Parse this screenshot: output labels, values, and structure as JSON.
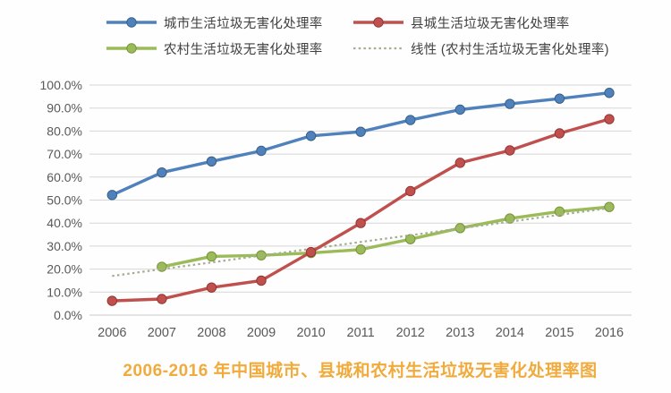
{
  "chart_data": {
    "type": "line",
    "title": "2006-2016 年中国城市、县城和农村生活垃圾无害化处理率图",
    "title_color": "#F0AB3C",
    "x": [
      "2006",
      "2007",
      "2008",
      "2009",
      "2010",
      "2011",
      "2012",
      "2013",
      "2014",
      "2015",
      "2016"
    ],
    "yticks": [
      "0.0%",
      "10.0%",
      "20.0%",
      "30.0%",
      "40.0%",
      "50.0%",
      "60.0%",
      "70.0%",
      "80.0%",
      "90.0%",
      "100.0%"
    ],
    "ylim": [
      0,
      100
    ],
    "ytick_step": 10,
    "grid": true,
    "legend_position": "top",
    "axis_text_color": "#595959",
    "gridline_color": "#D6D6D6",
    "series": [
      {
        "id": "urban",
        "name": "城市生活垃圾无害化处理率",
        "color": "#4F81BD",
        "marker_edge": "#3A6186",
        "style": "solid",
        "marker": "circle",
        "values": [
          52.2,
          62.0,
          66.8,
          71.4,
          77.9,
          79.7,
          84.8,
          89.3,
          91.8,
          94.1,
          96.6
        ]
      },
      {
        "id": "county",
        "name": "县城生活垃圾无害化处理率",
        "color": "#C0504D",
        "marker_edge": "#943634",
        "style": "solid",
        "marker": "circle",
        "values": [
          6.2,
          7.0,
          12.0,
          15.0,
          27.4,
          40.0,
          53.9,
          66.2,
          71.6,
          79.0,
          85.2
        ]
      },
      {
        "id": "rural",
        "name": "农村生活垃圾无害化处理率",
        "color": "#9BBB59",
        "marker_edge": "#77933C",
        "style": "solid",
        "marker": "circle",
        "values": [
          null,
          21.0,
          25.5,
          26.0,
          27.0,
          28.5,
          33.0,
          37.8,
          42.0,
          45.0,
          47.0
        ]
      },
      {
        "id": "trend-rural",
        "name": "线性 (农村生活垃圾无害化处理率)",
        "color": "#A4AD92",
        "marker_edge": "#A4AD92",
        "style": "dotted",
        "marker": "none",
        "values": [
          17.0,
          20.0,
          22.9,
          25.9,
          28.8,
          31.8,
          34.7,
          37.7,
          40.6,
          43.6,
          46.5
        ]
      }
    ]
  }
}
